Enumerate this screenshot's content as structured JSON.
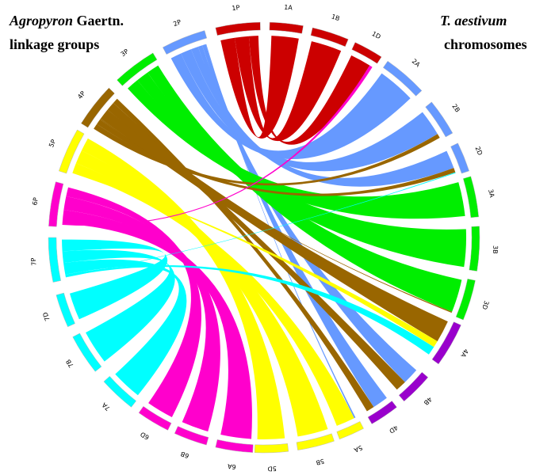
{
  "left_title": {
    "italic": "Agropyron",
    "rest": " Gaertn.",
    "line2": "linkage groups"
  },
  "right_title": {
    "italic": "T. aestivum",
    "line2": "chromosomes"
  },
  "colors": {
    "1": "#cc0000",
    "2": "#6699ff",
    "3": "#00ee00",
    "4": "#996600",
    "5": "#ffff00",
    "6": "#ff00cc",
    "7": "#00ffff",
    "wheat4": "#9900cc"
  },
  "agropyron_groups": [
    "1P",
    "2P",
    "3P",
    "4P",
    "5P",
    "6P",
    "7P"
  ],
  "wheat_chromosomes": [
    "1A",
    "1B",
    "1D",
    "2A",
    "2B",
    "2D",
    "3A",
    "3B",
    "3D",
    "4A",
    "4B",
    "4D",
    "5A",
    "5B",
    "5D",
    "6A",
    "6B",
    "6D",
    "7A",
    "7B",
    "7D"
  ],
  "links": [
    {
      "from": "1P",
      "to": "1A",
      "w": 3
    },
    {
      "from": "1P",
      "to": "1B",
      "w": 3
    },
    {
      "from": "1P",
      "to": "1D",
      "w": 2
    },
    {
      "from": "2P",
      "to": "2A",
      "w": 3
    },
    {
      "from": "2P",
      "to": "2B",
      "w": 3
    },
    {
      "from": "2P",
      "to": "2D",
      "w": 2
    },
    {
      "from": "2P",
      "to": "4B",
      "w": 1.2
    },
    {
      "from": "2P",
      "to": "4D",
      "w": 1
    },
    {
      "from": "2P",
      "to": "5A",
      "w": 0.15
    },
    {
      "from": "3P",
      "to": "3A",
      "w": 3
    },
    {
      "from": "3P",
      "to": "3B",
      "w": 3
    },
    {
      "from": "3P",
      "to": "3D",
      "w": 3
    },
    {
      "from": "4P",
      "to": "2B",
      "w": 0.5
    },
    {
      "from": "4P",
      "to": "2D",
      "w": 0.5
    },
    {
      "from": "4P",
      "to": "3D",
      "w": 0.1
    },
    {
      "from": "4P",
      "to": "4A",
      "w": 1
    },
    {
      "from": "4P",
      "to": "4B",
      "w": 0.8
    },
    {
      "from": "4P",
      "to": "4D",
      "w": 0.5
    },
    {
      "from": "5P",
      "to": "4A",
      "w": 0.3
    },
    {
      "from": "5P",
      "to": "5A",
      "w": 2
    },
    {
      "from": "5P",
      "to": "5B",
      "w": 3
    },
    {
      "from": "5P",
      "to": "5D",
      "w": 3
    },
    {
      "from": "6P",
      "to": "1D",
      "w": 0.3
    },
    {
      "from": "6P",
      "to": "6A",
      "w": 3
    },
    {
      "from": "6P",
      "to": "6B",
      "w": 3
    },
    {
      "from": "6P",
      "to": "6D",
      "w": 2
    },
    {
      "from": "7P",
      "to": "2D",
      "w": 0.1
    },
    {
      "from": "7P",
      "to": "4A",
      "w": 0.4
    },
    {
      "from": "7P",
      "to": "7A",
      "w": 2
    },
    {
      "from": "7P",
      "to": "7B",
      "w": 2
    },
    {
      "from": "7P",
      "to": "7D",
      "w": 2
    }
  ]
}
